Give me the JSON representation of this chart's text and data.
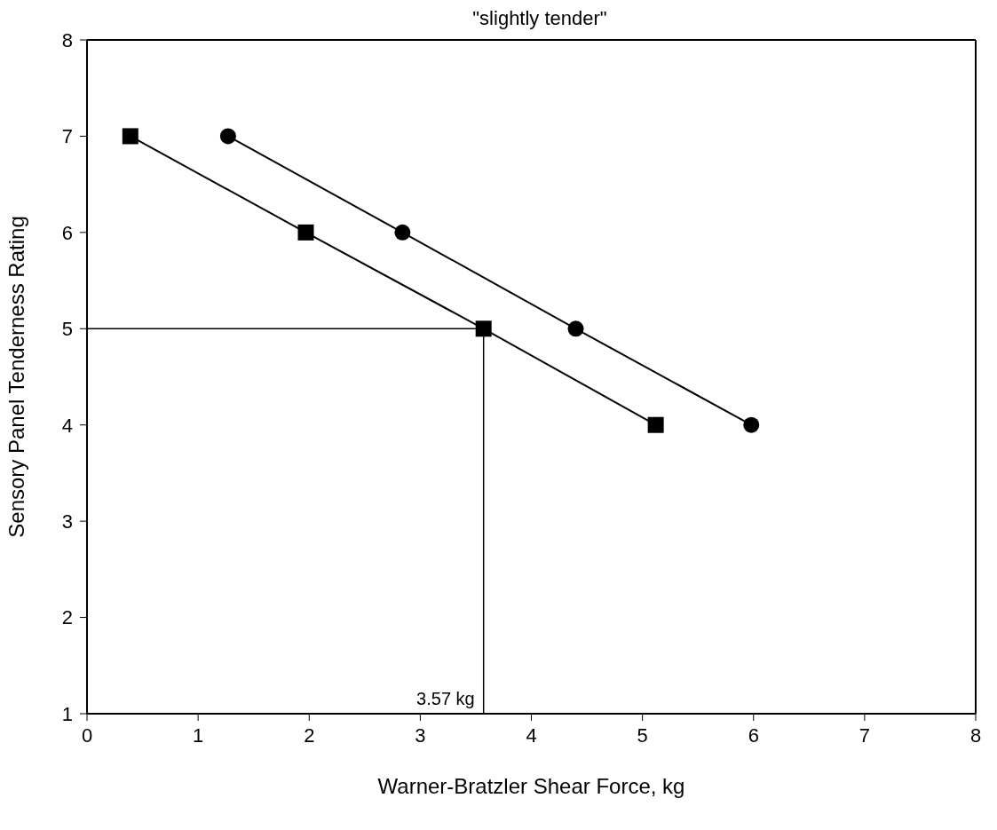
{
  "chart_data": {
    "type": "line",
    "title": "\"slightly tender\"",
    "xlabel": "Warner-Bratzler Shear Force, kg",
    "ylabel": "Sensory Panel Tenderness Rating",
    "series": [
      {
        "color": "#000000",
        "marker": "square",
        "x": [
          0.39,
          1.97,
          3.57,
          5.12
        ],
        "values": [
          7,
          6,
          5,
          4
        ]
      },
      {
        "color": "#000000",
        "marker": "circle",
        "x": [
          1.27,
          2.84,
          4.4,
          5.98
        ],
        "values": [
          7,
          6,
          5,
          4
        ]
      }
    ],
    "xlim": [
      0,
      8
    ],
    "xticks": [
      0,
      1,
      2,
      3,
      4,
      5,
      6,
      7,
      8
    ],
    "ylim": [
      1,
      8
    ],
    "yticks": [
      1,
      2,
      3,
      4,
      5,
      6,
      7,
      8
    ],
    "ref_lines": [
      {
        "axis": "y",
        "value": 5,
        "color": "#000000"
      },
      {
        "axis": "x",
        "value": 3.57,
        "label": "3.57 kg",
        "color": "#000000"
      }
    ],
    "grid": false,
    "line_style": "solid"
  }
}
